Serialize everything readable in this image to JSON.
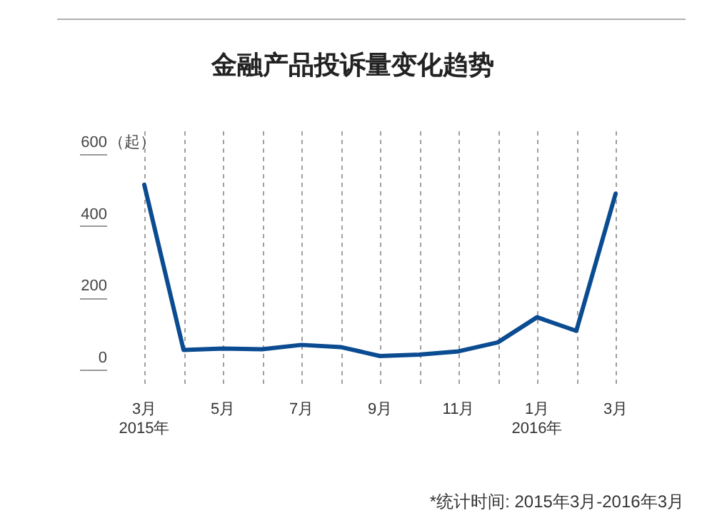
{
  "chart_data": {
    "type": "line",
    "title": "金融产品投诉量变化趋势",
    "categories": [
      "3月\n2015年",
      null,
      "5月",
      null,
      "7月",
      null,
      "9月",
      null,
      "11月",
      null,
      "1月\n2016年",
      null,
      "3月"
    ],
    "values": [
      483,
      23,
      27,
      25,
      37,
      31,
      6,
      10,
      19,
      44,
      114,
      76,
      458
    ],
    "color": "#0a4b91",
    "ylabel": "（起）",
    "ylim": [
      0,
      600
    ],
    "yticks": [
      0,
      200,
      400,
      600
    ],
    "grid": "x",
    "marker": "none",
    "line_style": "solid",
    "annotations": [
      "*统计时间: 2015年3月-2016年3月"
    ]
  }
}
